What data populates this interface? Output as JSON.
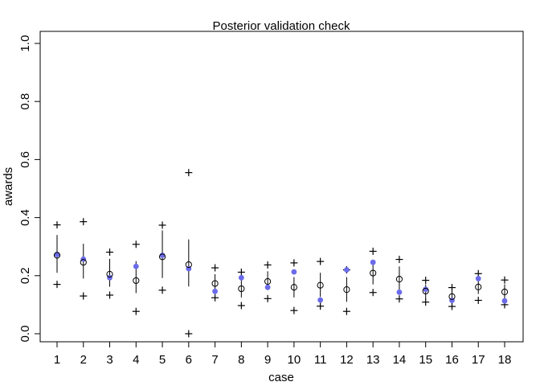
{
  "chart_data": {
    "type": "scatter",
    "title": "Posterior validation check",
    "xlabel": "case",
    "ylabel": "awards",
    "x": [
      1,
      2,
      3,
      4,
      5,
      6,
      7,
      8,
      9,
      10,
      11,
      12,
      13,
      14,
      15,
      16,
      17,
      18
    ],
    "x_ticks": [
      "1",
      "2",
      "3",
      "4",
      "5",
      "6",
      "7",
      "8",
      "9",
      "10",
      "11",
      "12",
      "13",
      "14",
      "15",
      "16",
      "17",
      "18"
    ],
    "y_ticks": [
      "0.0",
      "0.2",
      "0.4",
      "0.6",
      "0.8",
      "1.0"
    ],
    "ylim": [
      0,
      1
    ],
    "xlim": [
      1,
      18
    ],
    "grid": false,
    "series": [
      {
        "role": "observed",
        "marker": "filled-circle",
        "color": "#6B6BEB",
        "values": [
          0.273,
          0.257,
          0.193,
          0.232,
          0.27,
          0.224,
          0.146,
          0.193,
          0.16,
          0.213,
          0.116,
          0.22,
          0.246,
          0.143,
          0.153,
          0.115,
          0.19,
          0.113
        ]
      },
      {
        "role": "predicted-mean",
        "marker": "open-circle",
        "color": "#000000",
        "values": [
          0.27,
          0.246,
          0.205,
          0.183,
          0.265,
          0.238,
          0.173,
          0.155,
          0.18,
          0.16,
          0.167,
          0.152,
          0.209,
          0.188,
          0.147,
          0.128,
          0.161,
          0.144
        ]
      },
      {
        "role": "interval",
        "marker": "vertical-line",
        "color": "#000000",
        "low": [
          0.21,
          0.19,
          0.162,
          0.14,
          0.192,
          0.163,
          0.142,
          0.125,
          0.15,
          0.125,
          0.127,
          0.11,
          0.17,
          0.15,
          0.12,
          0.11,
          0.137,
          0.118
        ],
        "high": [
          0.34,
          0.31,
          0.258,
          0.25,
          0.356,
          0.325,
          0.205,
          0.185,
          0.215,
          0.195,
          0.21,
          0.195,
          0.25,
          0.232,
          0.17,
          0.148,
          0.19,
          0.17
        ]
      },
      {
        "role": "interval-upper-bound",
        "marker": "plus",
        "color": "#000000",
        "values": [
          0.375,
          0.386,
          0.281,
          0.308,
          0.374,
          0.555,
          0.227,
          0.212,
          0.237,
          0.244,
          0.249,
          0.22,
          0.284,
          0.256,
          0.184,
          0.159,
          0.207,
          0.185
        ]
      },
      {
        "role": "interval-lower-bound",
        "marker": "plus",
        "color": "#000000",
        "values": [
          0.17,
          0.13,
          0.133,
          0.077,
          0.15,
          0.0,
          0.124,
          0.097,
          0.121,
          0.08,
          0.095,
          0.077,
          0.142,
          0.12,
          0.109,
          0.094,
          0.115,
          0.1
        ]
      }
    ]
  }
}
